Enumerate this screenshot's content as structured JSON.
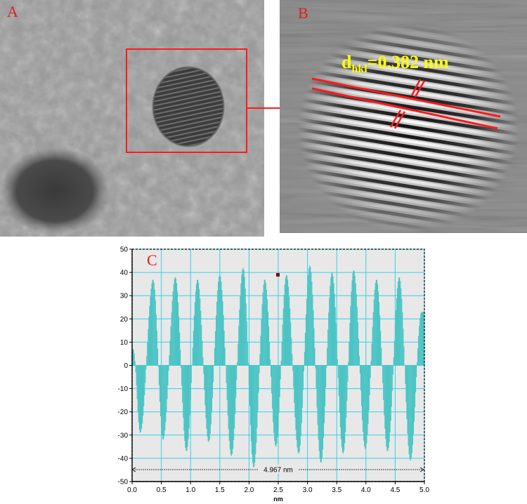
{
  "panels": {
    "a": {
      "letter": "A"
    },
    "b": {
      "letter": "B",
      "annotation_prefix": "d",
      "annotation_sub": "hkl",
      "annotation_value": "=0.382 nm"
    },
    "c": {
      "letter": "C"
    }
  },
  "colors": {
    "accent_red": "#ff1a1a",
    "annotation_yellow": "#ffff00",
    "series": "#4cc4c4",
    "grid": "#35d0e6",
    "plot_bg": "#e8e8e8"
  },
  "chart_data": {
    "type": "bar",
    "title": "",
    "xlabel": "nm",
    "ylabel": "",
    "xlim": [
      0.0,
      5.0
    ],
    "ylim": [
      -50,
      50
    ],
    "x_ticks": [
      "0.0",
      "0.5",
      "1.0",
      "1.5",
      "2.0",
      "2.5",
      "3.0",
      "3.5",
      "4.0",
      "4.5",
      "5.0"
    ],
    "y_ticks": [
      "50",
      "40",
      "30",
      "20",
      "10",
      "0",
      "-10",
      "-20",
      "-30",
      "-40",
      "-50"
    ],
    "grid": true,
    "measurement_label": "4.967 nm",
    "peak_x": [
      0.02,
      0.36,
      0.74,
      1.12,
      1.5,
      1.9,
      2.27,
      2.64,
      3.04,
      3.42,
      3.79,
      4.18,
      4.57,
      4.95
    ],
    "peak_values": [
      7,
      37,
      38,
      37,
      39,
      42,
      37,
      39,
      43,
      40,
      41,
      37,
      38,
      23
    ],
    "trough_x": [
      0.14,
      0.53,
      0.93,
      1.31,
      1.7,
      2.08,
      2.46,
      2.85,
      3.23,
      3.61,
      3.99,
      4.37,
      4.76
    ],
    "trough_values": [
      -29,
      -32,
      -37,
      -33,
      -39,
      -44,
      -35,
      -38,
      -42,
      -38,
      -36,
      -37,
      -41
    ]
  }
}
